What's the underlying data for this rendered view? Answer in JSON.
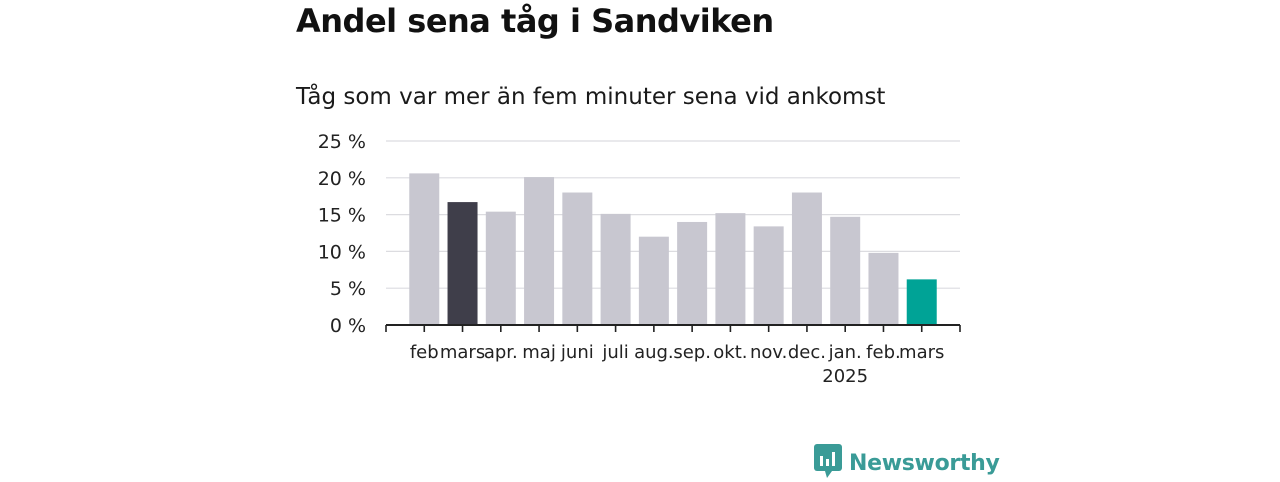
{
  "header": {
    "title": "Andel sena tåg i Sandviken",
    "subtitle": "Tåg som var mer än fem minuter sena vid ankomst"
  },
  "brand": {
    "name": "Newsworthy",
    "icon": "bar-chart-logo-icon"
  },
  "colors": {
    "bar_default": "#c8c7d0",
    "bar_reference": "#3f3e4a",
    "bar_current": "#00a396",
    "grid": "#dcdce0",
    "axis": "#222222",
    "brand": "#3a9b97"
  },
  "chart_data": {
    "type": "bar",
    "categories": [
      "feb",
      "mars",
      "apr.",
      "maj",
      "juni",
      "juli",
      "aug.",
      "sep.",
      "okt.",
      "nov.",
      "dec.",
      "jan.",
      "feb.",
      "mars"
    ],
    "year_label": {
      "text": "2025",
      "under_category_index": 11
    },
    "values": [
      20.6,
      16.7,
      15.4,
      20.1,
      18.0,
      15.1,
      12.0,
      14.0,
      15.2,
      13.4,
      18.0,
      14.7,
      9.8,
      6.2
    ],
    "highlight": {
      "reference_index": 1,
      "current_index": 13
    },
    "ylim": [
      0,
      25
    ],
    "yticks": [
      0,
      5,
      10,
      15,
      20,
      25
    ],
    "ytick_labels": [
      "0 %",
      "5 %",
      "10 %",
      "15 %",
      "20 %",
      "25 %"
    ],
    "grid": true,
    "xlabel": "",
    "ylabel": ""
  }
}
